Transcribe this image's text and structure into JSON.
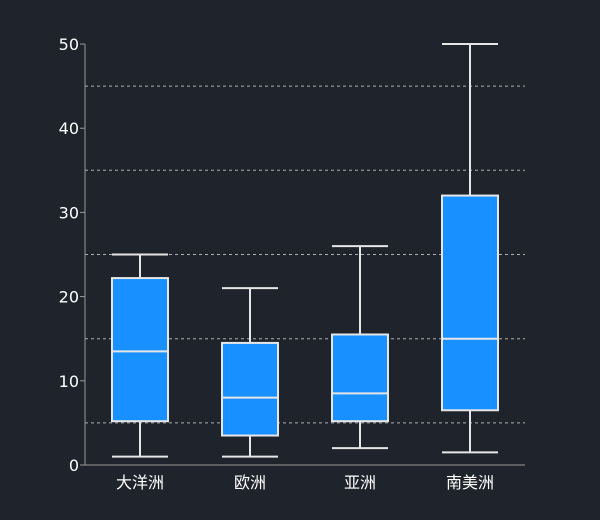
{
  "colors": {
    "background": "#1f232b",
    "box_fill": "#1890ff",
    "box_stroke": "#e6e6e6",
    "whisker": "#e6e6e6",
    "axis": "#9a9a9a",
    "grid": "#b0b0b0",
    "tick_label": "#ffffff"
  },
  "chart_data": {
    "type": "boxplot",
    "categories": [
      "大洋洲",
      "欧洲",
      "亚洲",
      "南美洲"
    ],
    "series": [
      {
        "boxes": [
          {
            "category": "大洋洲",
            "min": 1,
            "q1": 5.2,
            "median": 13.5,
            "q3": 22.2,
            "max": 25
          },
          {
            "category": "欧洲",
            "min": 1,
            "q1": 3.5,
            "median": 8,
            "q3": 14.5,
            "max": 21
          },
          {
            "category": "亚洲",
            "min": 2,
            "q1": 5.2,
            "median": 8.5,
            "q3": 15.5,
            "max": 26
          },
          {
            "category": "南美洲",
            "min": 1.5,
            "q1": 6.5,
            "median": 15,
            "q3": 32,
            "max": 50
          }
        ]
      }
    ],
    "y_ticks": [
      0,
      10,
      20,
      30,
      40,
      50
    ],
    "gridlines": [
      5,
      15,
      25,
      35,
      45
    ],
    "grid": true,
    "grid_style": "dashed",
    "ylim": [
      0,
      50
    ],
    "title": "",
    "xlabel": "",
    "ylabel": ""
  }
}
